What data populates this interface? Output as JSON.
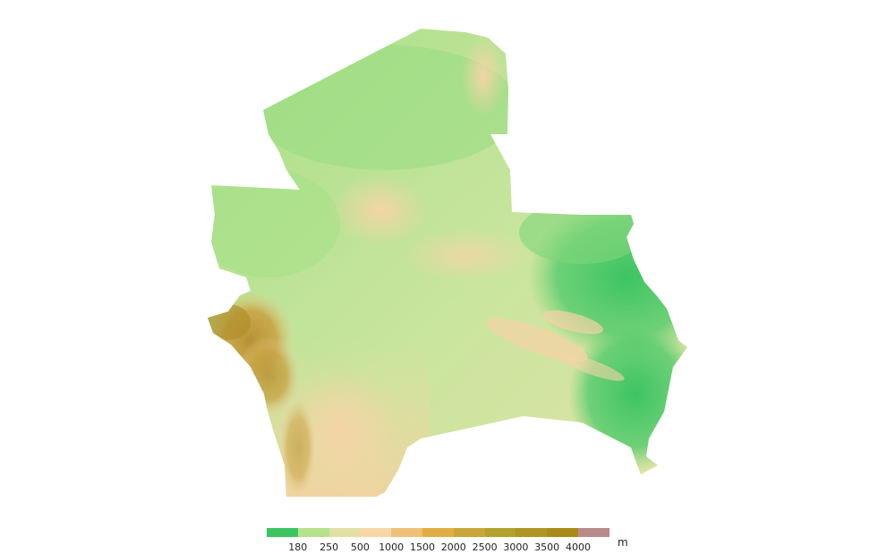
{
  "map": {
    "legend": {
      "unit": "m",
      "ticks": [
        "180",
        "250",
        "500",
        "1000",
        "1500",
        "2000",
        "2500",
        "3000",
        "3500",
        "4000"
      ],
      "colors": [
        "#3cc462",
        "#b5e28a",
        "#e2e1a5",
        "#f7d7a6",
        "#efc078",
        "#e0ae44",
        "#c9a53a",
        "#b3a02d",
        "#af9522",
        "#aa8a17",
        "#b98a8a"
      ]
    },
    "palette": {
      "lowland_green": "#3ec863",
      "plain_green": "#9fdf86",
      "pale_green": "#c7e59c",
      "tan": "#f4d6a7",
      "highland_ochre": "#c79a3a",
      "mountain_brown": "#b0902a"
    }
  }
}
